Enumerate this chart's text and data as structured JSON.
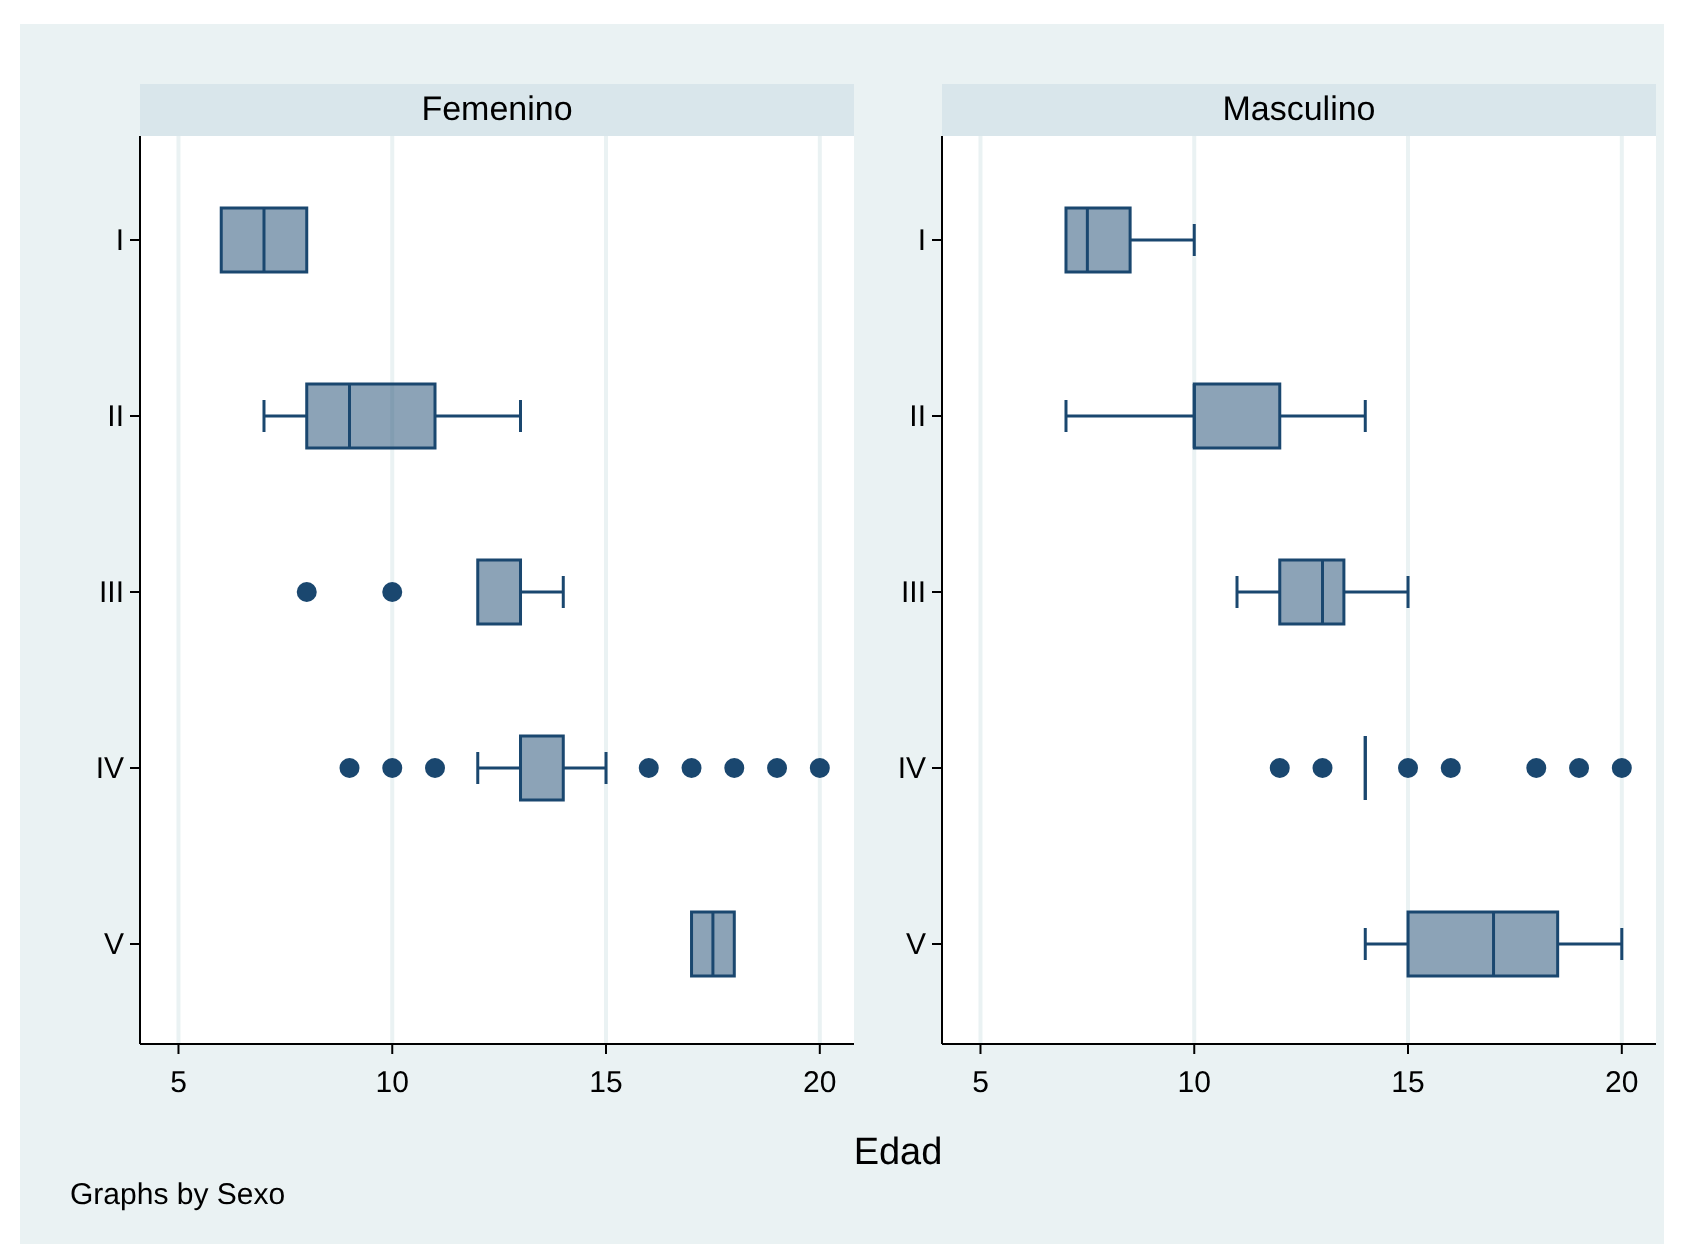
{
  "chart_data": [
    {
      "type": "box",
      "title": "Femenino",
      "orientation": "horizontal",
      "categories": [
        "I",
        "II",
        "III",
        "IV",
        "V"
      ],
      "color": "#1a476f",
      "grid": "x",
      "xlim": [
        4.1,
        20.8
      ],
      "xticks": [
        5,
        10,
        15,
        20
      ],
      "xlabel": "Edad",
      "annotations": [
        "Graphs by Sexo"
      ],
      "boxes": [
        {
          "low": 6,
          "q1": 6,
          "median": 7,
          "q3": 8,
          "high": 8
        },
        {
          "low": 7,
          "q1": 8,
          "median": 9,
          "q3": 11,
          "high": 13
        },
        {
          "low": 12,
          "q1": 12,
          "median": 13,
          "q3": 13,
          "high": 14,
          "outliers": [
            8,
            10
          ]
        },
        {
          "low": 12,
          "q1": 13,
          "median": 13,
          "q3": 14,
          "high": 15,
          "outliers": [
            9,
            10,
            11,
            16,
            17,
            18,
            19,
            20
          ]
        },
        {
          "low": 17,
          "q1": 17,
          "median": 17.5,
          "q3": 18,
          "high": 18
        }
      ]
    },
    {
      "type": "box",
      "title": "Masculino",
      "orientation": "horizontal",
      "categories": [
        "I",
        "II",
        "III",
        "IV",
        "V"
      ],
      "color": "#1a476f",
      "grid": "x",
      "xlim": [
        4.1,
        20.8
      ],
      "xticks": [
        5,
        10,
        15,
        20
      ],
      "boxes": [
        {
          "low": 7,
          "q1": 7,
          "median": 7.5,
          "q3": 8.5,
          "high": 10
        },
        {
          "low": 7,
          "q1": 10,
          "median": 10,
          "q3": 12,
          "high": 14
        },
        {
          "low": 11,
          "q1": 12,
          "median": 13,
          "q3": 13.5,
          "high": 15
        },
        {
          "low": 14,
          "q1": 14,
          "median": 14,
          "q3": 14,
          "high": 14,
          "outliers": [
            12,
            13,
            15,
            16,
            18,
            19,
            20
          ]
        },
        {
          "low": 14,
          "q1": 15,
          "median": 17,
          "q3": 18.5,
          "high": 20
        }
      ]
    }
  ]
}
